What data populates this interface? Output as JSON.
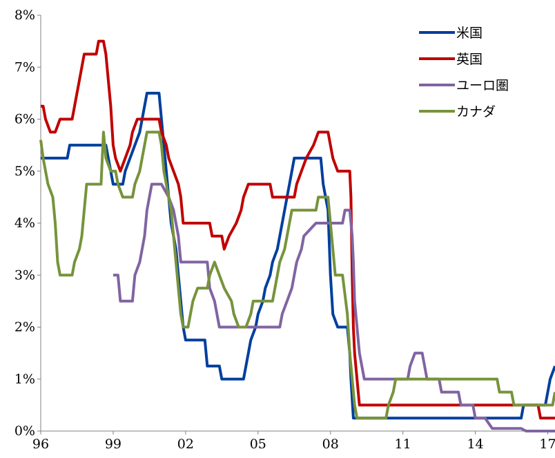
{
  "chart_data": {
    "type": "line",
    "title": "",
    "xlabel": "",
    "ylabel": "",
    "x_range": [
      1996.0,
      2017.3
    ],
    "ylim": [
      0,
      8
    ],
    "y_ticks": [
      {
        "v": 0,
        "label": "0%"
      },
      {
        "v": 1,
        "label": "1%"
      },
      {
        "v": 2,
        "label": "2%"
      },
      {
        "v": 3,
        "label": "3%"
      },
      {
        "v": 4,
        "label": "4%"
      },
      {
        "v": 5,
        "label": "5%"
      },
      {
        "v": 6,
        "label": "6%"
      },
      {
        "v": 7,
        "label": "7%"
      },
      {
        "v": 8,
        "label": "8%"
      }
    ],
    "x_ticks": [
      {
        "v": 1996,
        "label": "96"
      },
      {
        "v": 1999,
        "label": "99"
      },
      {
        "v": 2002,
        "label": "02"
      },
      {
        "v": 2005,
        "label": "05"
      },
      {
        "v": 2008,
        "label": "08"
      },
      {
        "v": 2011,
        "label": "11"
      },
      {
        "v": 2014,
        "label": "14"
      },
      {
        "v": 2017,
        "label": "17"
      }
    ],
    "grid": false,
    "legend_position": "top-right",
    "series": [
      {
        "name": "米国",
        "color": "#003f9e",
        "points": [
          [
            1996.0,
            5.25
          ],
          [
            1997.1,
            5.25
          ],
          [
            1997.2,
            5.5
          ],
          [
            1998.7,
            5.5
          ],
          [
            1998.8,
            5.25
          ],
          [
            1998.9,
            5.0
          ],
          [
            1999.0,
            4.75
          ],
          [
            1999.4,
            4.75
          ],
          [
            1999.5,
            5.0
          ],
          [
            1999.7,
            5.25
          ],
          [
            1999.9,
            5.5
          ],
          [
            2000.1,
            5.75
          ],
          [
            2000.2,
            6.0
          ],
          [
            2000.4,
            6.5
          ],
          [
            2000.9,
            6.5
          ],
          [
            2001.0,
            6.0
          ],
          [
            2001.1,
            5.5
          ],
          [
            2001.2,
            5.0
          ],
          [
            2001.3,
            4.5
          ],
          [
            2001.4,
            4.0
          ],
          [
            2001.5,
            3.75
          ],
          [
            2001.6,
            3.5
          ],
          [
            2001.7,
            3.0
          ],
          [
            2001.8,
            2.5
          ],
          [
            2001.9,
            2.0
          ],
          [
            2002.0,
            1.75
          ],
          [
            2002.8,
            1.75
          ],
          [
            2002.9,
            1.25
          ],
          [
            2003.4,
            1.25
          ],
          [
            2003.5,
            1.0
          ],
          [
            2004.4,
            1.0
          ],
          [
            2004.5,
            1.25
          ],
          [
            2004.6,
            1.5
          ],
          [
            2004.7,
            1.75
          ],
          [
            2004.9,
            2.0
          ],
          [
            2005.0,
            2.25
          ],
          [
            2005.2,
            2.5
          ],
          [
            2005.3,
            2.75
          ],
          [
            2005.5,
            3.0
          ],
          [
            2005.6,
            3.25
          ],
          [
            2005.8,
            3.5
          ],
          [
            2005.9,
            3.75
          ],
          [
            2006.0,
            4.0
          ],
          [
            2006.1,
            4.25
          ],
          [
            2006.2,
            4.5
          ],
          [
            2006.3,
            4.75
          ],
          [
            2006.4,
            5.0
          ],
          [
            2006.5,
            5.25
          ],
          [
            2007.6,
            5.25
          ],
          [
            2007.7,
            4.75
          ],
          [
            2007.8,
            4.5
          ],
          [
            2007.9,
            4.25
          ],
          [
            2008.0,
            3.0
          ],
          [
            2008.1,
            2.25
          ],
          [
            2008.3,
            2.0
          ],
          [
            2008.7,
            2.0
          ],
          [
            2008.8,
            1.5
          ],
          [
            2008.85,
            1.0
          ],
          [
            2008.95,
            0.25
          ],
          [
            2015.9,
            0.25
          ],
          [
            2016.0,
            0.5
          ],
          [
            2016.9,
            0.5
          ],
          [
            2017.0,
            0.75
          ],
          [
            2017.1,
            1.0
          ],
          [
            2017.3,
            1.25
          ]
        ]
      },
      {
        "name": "英国",
        "color": "#c00000",
        "points": [
          [
            1996.0,
            6.25
          ],
          [
            1996.1,
            6.25
          ],
          [
            1996.2,
            6.0
          ],
          [
            1996.4,
            5.75
          ],
          [
            1996.6,
            5.75
          ],
          [
            1996.8,
            6.0
          ],
          [
            1997.3,
            6.0
          ],
          [
            1997.4,
            6.25
          ],
          [
            1997.5,
            6.5
          ],
          [
            1997.6,
            6.75
          ],
          [
            1997.7,
            7.0
          ],
          [
            1997.8,
            7.25
          ],
          [
            1998.3,
            7.25
          ],
          [
            1998.4,
            7.5
          ],
          [
            1998.6,
            7.5
          ],
          [
            1998.7,
            7.25
          ],
          [
            1998.8,
            6.75
          ],
          [
            1998.9,
            6.25
          ],
          [
            1999.0,
            5.5
          ],
          [
            1999.1,
            5.25
          ],
          [
            1999.3,
            5.0
          ],
          [
            1999.5,
            5.25
          ],
          [
            1999.7,
            5.5
          ],
          [
            1999.8,
            5.75
          ],
          [
            2000.0,
            6.0
          ],
          [
            2000.9,
            6.0
          ],
          [
            2001.0,
            5.75
          ],
          [
            2001.2,
            5.5
          ],
          [
            2001.3,
            5.25
          ],
          [
            2001.5,
            5.0
          ],
          [
            2001.7,
            4.75
          ],
          [
            2001.8,
            4.5
          ],
          [
            2001.9,
            4.0
          ],
          [
            2003.0,
            4.0
          ],
          [
            2003.1,
            3.75
          ],
          [
            2003.5,
            3.75
          ],
          [
            2003.6,
            3.5
          ],
          [
            2003.8,
            3.75
          ],
          [
            2004.1,
            4.0
          ],
          [
            2004.3,
            4.25
          ],
          [
            2004.4,
            4.5
          ],
          [
            2004.6,
            4.75
          ],
          [
            2005.5,
            4.75
          ],
          [
            2005.6,
            4.5
          ],
          [
            2006.5,
            4.5
          ],
          [
            2006.6,
            4.75
          ],
          [
            2006.8,
            5.0
          ],
          [
            2007.0,
            5.25
          ],
          [
            2007.3,
            5.5
          ],
          [
            2007.5,
            5.75
          ],
          [
            2007.9,
            5.75
          ],
          [
            2008.0,
            5.5
          ],
          [
            2008.1,
            5.25
          ],
          [
            2008.3,
            5.0
          ],
          [
            2008.8,
            5.0
          ],
          [
            2008.85,
            4.5
          ],
          [
            2008.9,
            3.0
          ],
          [
            2008.95,
            2.0
          ],
          [
            2009.0,
            1.5
          ],
          [
            2009.1,
            1.0
          ],
          [
            2009.2,
            0.5
          ],
          [
            2016.6,
            0.5
          ],
          [
            2016.7,
            0.25
          ],
          [
            2017.3,
            0.25
          ]
        ]
      },
      {
        "name": "ユーロ圏",
        "color": "#8064a2",
        "points": [
          [
            1999.0,
            3.0
          ],
          [
            1999.2,
            3.0
          ],
          [
            1999.3,
            2.5
          ],
          [
            1999.8,
            2.5
          ],
          [
            1999.9,
            3.0
          ],
          [
            2000.1,
            3.25
          ],
          [
            2000.2,
            3.5
          ],
          [
            2000.3,
            3.75
          ],
          [
            2000.4,
            4.25
          ],
          [
            2000.5,
            4.5
          ],
          [
            2000.6,
            4.75
          ],
          [
            2000.9,
            4.75
          ],
          [
            2001.0,
            4.75
          ],
          [
            2001.3,
            4.5
          ],
          [
            2001.5,
            4.25
          ],
          [
            2001.6,
            4.0
          ],
          [
            2001.7,
            3.75
          ],
          [
            2001.8,
            3.25
          ],
          [
            2002.9,
            3.25
          ],
          [
            2003.0,
            2.75
          ],
          [
            2003.2,
            2.5
          ],
          [
            2003.4,
            2.0
          ],
          [
            2005.9,
            2.0
          ],
          [
            2006.0,
            2.25
          ],
          [
            2006.2,
            2.5
          ],
          [
            2006.4,
            2.75
          ],
          [
            2006.5,
            3.0
          ],
          [
            2006.6,
            3.25
          ],
          [
            2006.8,
            3.5
          ],
          [
            2006.9,
            3.75
          ],
          [
            2007.4,
            4.0
          ],
          [
            2008.5,
            4.0
          ],
          [
            2008.6,
            4.25
          ],
          [
            2008.8,
            4.25
          ],
          [
            2008.9,
            3.75
          ],
          [
            2008.95,
            3.25
          ],
          [
            2009.0,
            2.5
          ],
          [
            2009.1,
            2.0
          ],
          [
            2009.2,
            1.5
          ],
          [
            2009.3,
            1.25
          ],
          [
            2009.4,
            1.0
          ],
          [
            2011.2,
            1.0
          ],
          [
            2011.3,
            1.25
          ],
          [
            2011.5,
            1.5
          ],
          [
            2011.8,
            1.5
          ],
          [
            2011.9,
            1.25
          ],
          [
            2012.0,
            1.0
          ],
          [
            2012.5,
            1.0
          ],
          [
            2012.6,
            0.75
          ],
          [
            2013.3,
            0.75
          ],
          [
            2013.4,
            0.5
          ],
          [
            2013.9,
            0.5
          ],
          [
            2014.0,
            0.25
          ],
          [
            2014.4,
            0.25
          ],
          [
            2014.7,
            0.05
          ],
          [
            2015.9,
            0.05
          ],
          [
            2016.1,
            0.0
          ],
          [
            2017.3,
            0.0
          ]
        ]
      },
      {
        "name": "カナダ",
        "color": "#77933c",
        "points": [
          [
            1996.0,
            5.6
          ],
          [
            1996.1,
            5.25
          ],
          [
            1996.2,
            5.0
          ],
          [
            1996.3,
            4.75
          ],
          [
            1996.5,
            4.5
          ],
          [
            1996.6,
            4.0
          ],
          [
            1996.7,
            3.25
          ],
          [
            1996.8,
            3.0
          ],
          [
            1997.3,
            3.0
          ],
          [
            1997.4,
            3.25
          ],
          [
            1997.6,
            3.5
          ],
          [
            1997.7,
            3.75
          ],
          [
            1997.8,
            4.25
          ],
          [
            1997.9,
            4.75
          ],
          [
            1998.5,
            4.75
          ],
          [
            1998.6,
            5.75
          ],
          [
            1998.7,
            5.25
          ],
          [
            1998.9,
            5.0
          ],
          [
            1999.1,
            5.0
          ],
          [
            1999.2,
            4.75
          ],
          [
            1999.4,
            4.5
          ],
          [
            1999.8,
            4.5
          ],
          [
            1999.9,
            4.75
          ],
          [
            2000.1,
            5.0
          ],
          [
            2000.2,
            5.25
          ],
          [
            2000.3,
            5.5
          ],
          [
            2000.4,
            5.75
          ],
          [
            2000.9,
            5.75
          ],
          [
            2001.0,
            5.5
          ],
          [
            2001.1,
            5.0
          ],
          [
            2001.2,
            4.75
          ],
          [
            2001.3,
            4.5
          ],
          [
            2001.4,
            4.25
          ],
          [
            2001.5,
            3.75
          ],
          [
            2001.6,
            3.25
          ],
          [
            2001.7,
            2.75
          ],
          [
            2001.8,
            2.25
          ],
          [
            2001.9,
            2.0
          ],
          [
            2002.1,
            2.0
          ],
          [
            2002.2,
            2.25
          ],
          [
            2002.3,
            2.5
          ],
          [
            2002.5,
            2.75
          ],
          [
            2002.9,
            2.75
          ],
          [
            2003.0,
            3.0
          ],
          [
            2003.2,
            3.25
          ],
          [
            2003.4,
            3.0
          ],
          [
            2003.6,
            2.75
          ],
          [
            2003.9,
            2.5
          ],
          [
            2004.0,
            2.25
          ],
          [
            2004.2,
            2.0
          ],
          [
            2004.5,
            2.0
          ],
          [
            2004.7,
            2.25
          ],
          [
            2004.8,
            2.5
          ],
          [
            2005.6,
            2.5
          ],
          [
            2005.7,
            2.75
          ],
          [
            2005.8,
            3.0
          ],
          [
            2005.9,
            3.25
          ],
          [
            2006.1,
            3.5
          ],
          [
            2006.2,
            3.75
          ],
          [
            2006.3,
            4.0
          ],
          [
            2006.4,
            4.25
          ],
          [
            2007.4,
            4.25
          ],
          [
            2007.5,
            4.5
          ],
          [
            2007.9,
            4.5
          ],
          [
            2008.0,
            4.0
          ],
          [
            2008.1,
            3.5
          ],
          [
            2008.2,
            3.0
          ],
          [
            2008.5,
            3.0
          ],
          [
            2008.7,
            2.25
          ],
          [
            2008.8,
            1.5
          ],
          [
            2008.9,
            1.0
          ],
          [
            2009.0,
            0.5
          ],
          [
            2009.1,
            0.25
          ],
          [
            2010.3,
            0.25
          ],
          [
            2010.4,
            0.5
          ],
          [
            2010.6,
            0.75
          ],
          [
            2010.7,
            1.0
          ],
          [
            2014.9,
            1.0
          ],
          [
            2015.0,
            0.75
          ],
          [
            2015.5,
            0.75
          ],
          [
            2015.6,
            0.5
          ],
          [
            2017.2,
            0.5
          ],
          [
            2017.3,
            0.75
          ]
        ]
      }
    ]
  }
}
